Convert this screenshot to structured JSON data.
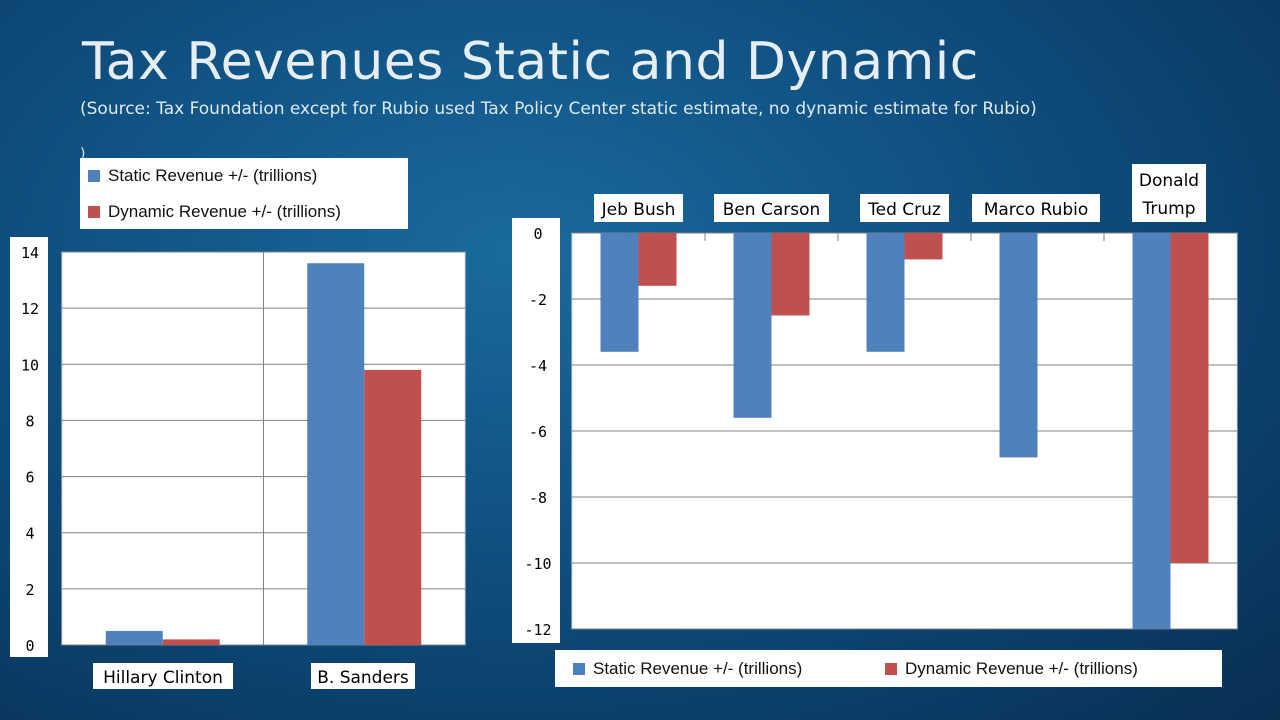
{
  "slide": {
    "title": "Tax Revenues Static and Dynamic",
    "subtitle": "(Source:  Tax Foundation except for Rubio used Tax Policy Center static estimate, no dynamic estimate for Rubio)",
    "stray_mark": ")"
  },
  "colors": {
    "static": "#4f81bd",
    "dynamic": "#c0504d"
  },
  "chart_data": [
    {
      "type": "bar",
      "categories": [
        "Hillary Clinton",
        "B. Sanders"
      ],
      "series": [
        {
          "name": "Static Revenue +/- (trillions)",
          "values": [
            0.5,
            13.6
          ]
        },
        {
          "name": "Dynamic Revenue +/- (trillions)",
          "values": [
            0.2,
            9.8
          ]
        }
      ],
      "ylim": [
        0,
        14
      ],
      "yticks": [
        "0",
        "2",
        "4",
        "6",
        "8",
        "10",
        "12",
        "14"
      ],
      "grid": true,
      "legend_position": "top"
    },
    {
      "type": "bar",
      "categories": [
        "Jeb Bush",
        "Ben Carson",
        "Ted Cruz",
        "Marco Rubio",
        "Donald Trump"
      ],
      "series": [
        {
          "name": "Static Revenue +/- (trillions)",
          "values": [
            -3.6,
            -5.6,
            -3.6,
            -6.8,
            -12.0
          ]
        },
        {
          "name": "Dynamic Revenue +/- (trillions)",
          "values": [
            -1.6,
            -2.5,
            -0.8,
            null,
            -10.0
          ]
        }
      ],
      "ylim": [
        -12,
        0
      ],
      "yticks": [
        "0",
        "-2",
        "-4",
        "-6",
        "-8",
        "-10",
        "-12"
      ],
      "grid": true,
      "legend_position": "bottom"
    }
  ]
}
